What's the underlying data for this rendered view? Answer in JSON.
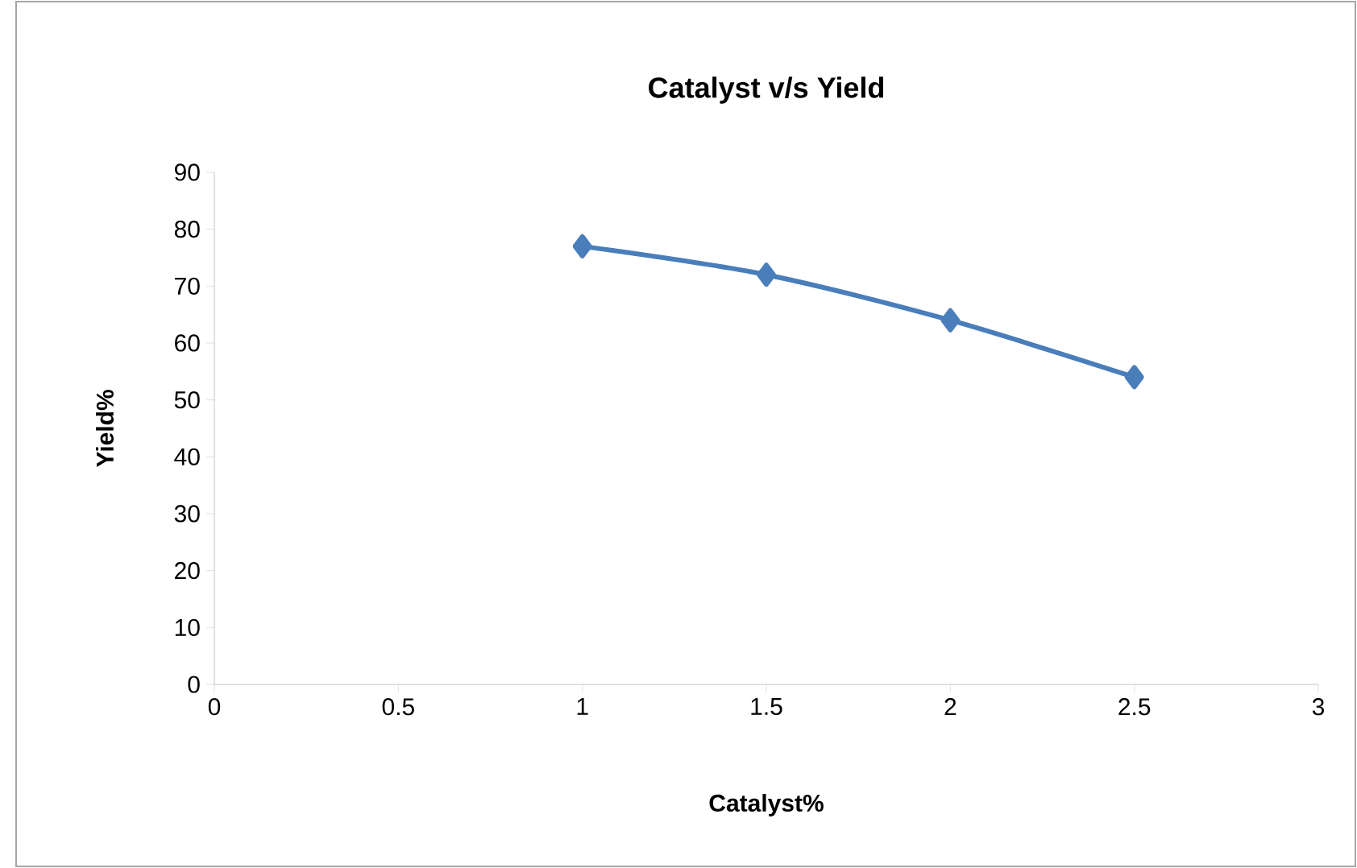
{
  "chart_data": {
    "type": "line",
    "title": "Catalyst v/s Yield",
    "xlabel": "Catalyst%",
    "ylabel": "Yield%",
    "x": [
      1,
      1.5,
      2,
      2.5
    ],
    "series": [
      {
        "color": "#4a7ebb",
        "values": [
          77,
          72,
          64,
          54
        ]
      }
    ],
    "xlim": [
      0,
      3
    ],
    "xticks": [
      0,
      0.5,
      1,
      1.5,
      2,
      2.5,
      3
    ],
    "ylim": [
      0,
      90
    ],
    "yticks": [
      0,
      10,
      20,
      30,
      40,
      50,
      60,
      70,
      80,
      90
    ],
    "grid": false,
    "marker": "diamond",
    "line_style": "solid"
  }
}
